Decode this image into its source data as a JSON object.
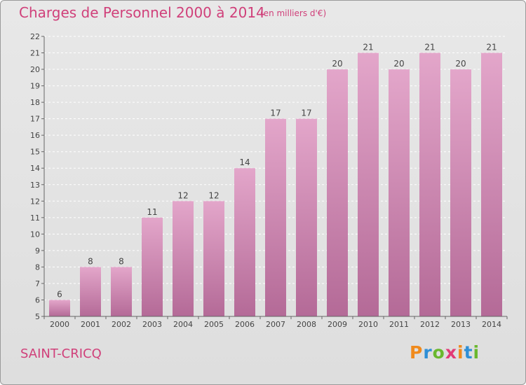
{
  "header": {
    "title": "Charges de Personnel 2000 à 2014",
    "subtitle": "(en milliers d'€)"
  },
  "footer": {
    "commune": "SAINT-CRICQ",
    "logo_text": "Proxiti"
  },
  "colors": {
    "title": "#d0407a",
    "bar_top": "#e3a6ca",
    "bar_bottom": "#b46a97",
    "logo_letters": [
      "#f08a1c",
      "#2f8fd6",
      "#6ab82e",
      "#e23a76",
      "#f08a1c",
      "#2f8fd6",
      "#6ab82e"
    ]
  },
  "chart_data": {
    "type": "bar",
    "categories": [
      "2000",
      "2001",
      "2002",
      "2003",
      "2004",
      "2005",
      "2006",
      "2007",
      "2008",
      "2009",
      "2010",
      "2011",
      "2012",
      "2013",
      "2014"
    ],
    "values": [
      6,
      8,
      8,
      11,
      12,
      12,
      14,
      17,
      17,
      20,
      21,
      20,
      21,
      20,
      21
    ],
    "ylim": [
      5,
      22
    ],
    "yticks": [
      5,
      6,
      7,
      8,
      9,
      10,
      11,
      12,
      13,
      14,
      15,
      16,
      17,
      18,
      19,
      20,
      21,
      22
    ],
    "grid": true,
    "data_labels": true
  }
}
